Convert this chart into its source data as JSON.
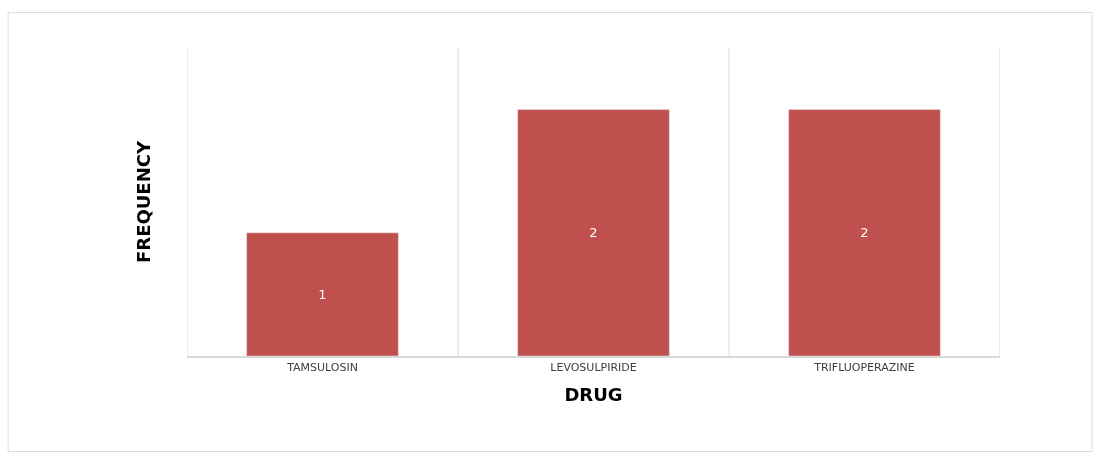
{
  "chart_data": {
    "type": "bar",
    "xlabel": "DRUG",
    "ylabel": "FREQUENCY",
    "categories": [
      "TAMSULOSIN",
      "LEVOSULPIRIDE",
      "TRIFLUOPERAZINE"
    ],
    "values": [
      1,
      2,
      2
    ],
    "color": "#c0504d",
    "ylim": [
      0,
      2.5
    ],
    "data_labels": true,
    "grid": "x",
    "tick_labels": "x",
    "legend": false
  }
}
